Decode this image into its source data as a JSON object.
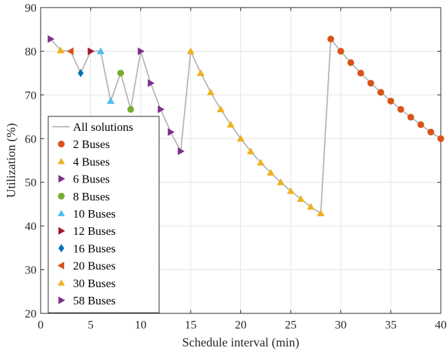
{
  "chart_data": {
    "type": "scatter",
    "xlabel": "Schedule interval (min)",
    "ylabel": "Utilization (%)",
    "xlim": [
      0,
      40
    ],
    "ylim": [
      20,
      90
    ],
    "xticks": [
      0,
      5,
      10,
      15,
      20,
      25,
      30,
      35,
      40
    ],
    "yticks": [
      20,
      30,
      40,
      50,
      60,
      70,
      80,
      90
    ],
    "grid": true,
    "legend_position": "left",
    "line": {
      "name": "All solutions",
      "color": "#b3b3b3",
      "x": [
        1,
        2,
        3,
        4,
        5,
        6,
        7,
        8,
        9,
        10,
        11,
        12,
        13,
        14,
        15,
        16,
        17,
        18,
        19,
        20,
        21,
        22,
        23,
        24,
        25,
        26,
        27,
        28,
        29,
        30,
        31,
        32,
        33,
        34,
        35,
        36,
        37,
        38,
        39,
        40
      ],
      "y": [
        82.8,
        80.2,
        80.0,
        75.0,
        80.0,
        80.0,
        68.6,
        75.0,
        66.7,
        80.0,
        72.7,
        66.7,
        61.5,
        57.1,
        80.0,
        75.0,
        70.6,
        66.7,
        63.2,
        60.0,
        57.1,
        54.5,
        52.2,
        50.0,
        48.0,
        46.2,
        44.4,
        42.9,
        82.8,
        80.0,
        77.4,
        75.0,
        72.7,
        70.6,
        68.6,
        66.7,
        64.9,
        63.2,
        61.5,
        60.0
      ]
    },
    "series": [
      {
        "name": "2 Buses",
        "marker": "circle",
        "color": "#d95319",
        "x": [
          29,
          30,
          31,
          32,
          33,
          34,
          35,
          36,
          37,
          38,
          39,
          40
        ],
        "y": [
          82.8,
          80.0,
          77.4,
          75.0,
          72.7,
          70.6,
          68.6,
          66.7,
          64.9,
          63.2,
          61.5,
          60.0
        ]
      },
      {
        "name": "4 Buses",
        "marker": "triangle-up",
        "color": "#edb120",
        "x": [
          15,
          16,
          17,
          18,
          19,
          20,
          21,
          22,
          23,
          24,
          25,
          26,
          27,
          28
        ],
        "y": [
          80.0,
          75.0,
          70.6,
          66.7,
          63.2,
          60.0,
          57.1,
          54.5,
          52.2,
          50.0,
          48.0,
          46.2,
          44.4,
          42.9
        ]
      },
      {
        "name": "6 Buses",
        "marker": "triangle-right",
        "color": "#7e2f8e",
        "x": [
          10,
          11,
          12,
          13,
          14
        ],
        "y": [
          80.0,
          72.7,
          66.7,
          61.5,
          57.1
        ]
      },
      {
        "name": "8 Buses",
        "marker": "circle",
        "color": "#77ac30",
        "x": [
          8,
          9
        ],
        "y": [
          75.0,
          66.7
        ]
      },
      {
        "name": "10 Buses",
        "marker": "triangle-up",
        "color": "#4dbeee",
        "x": [
          6,
          7
        ],
        "y": [
          80.0,
          68.6
        ]
      },
      {
        "name": "12 Buses",
        "marker": "triangle-right",
        "color": "#a2142f",
        "x": [
          5
        ],
        "y": [
          80.0
        ]
      },
      {
        "name": "16 Buses",
        "marker": "diamond",
        "color": "#0072bd",
        "x": [
          4
        ],
        "y": [
          75.0
        ]
      },
      {
        "name": "20 Buses",
        "marker": "triangle-left",
        "color": "#d95319",
        "x": [
          3
        ],
        "y": [
          80.0
        ]
      },
      {
        "name": "30 Buses",
        "marker": "triangle-up",
        "color": "#edb120",
        "x": [
          2
        ],
        "y": [
          80.2
        ]
      },
      {
        "name": "58 Buses",
        "marker": "triangle-right",
        "color": "#7e2f8e",
        "x": [
          1
        ],
        "y": [
          82.8
        ]
      }
    ]
  }
}
